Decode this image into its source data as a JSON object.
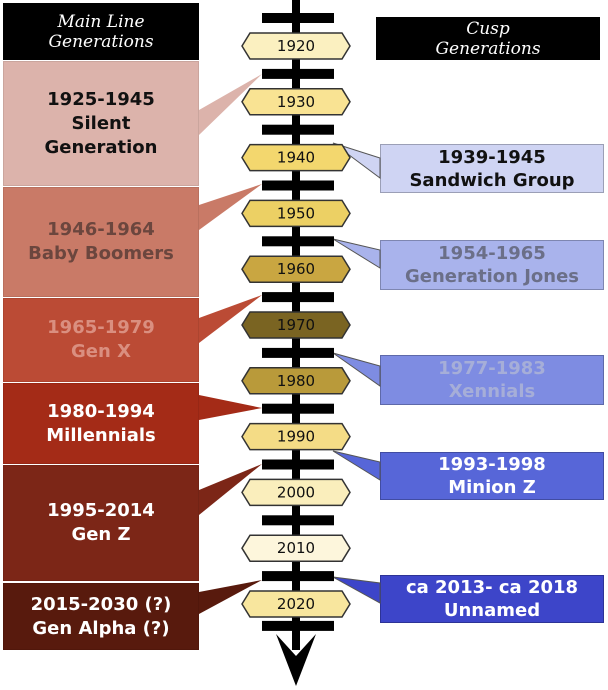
{
  "headers": {
    "main": {
      "line1": "Main Line",
      "line2": "Generations"
    },
    "cusp": {
      "line1": "Cusp",
      "line2": "Generations"
    }
  },
  "years": [
    "1920",
    "1930",
    "1940",
    "1950",
    "1960",
    "1970",
    "1980",
    "1990",
    "2000",
    "2010",
    "2020"
  ],
  "year_colors": [
    "#fbf0c0",
    "#f9e393",
    "#f3d76e",
    "#ecd064",
    "#c9a641",
    "#7a6422",
    "#b99a3a",
    "#f4dc86",
    "#faeebc",
    "#fdf6dc",
    "#f8e69e"
  ],
  "main_line": [
    {
      "years": "1925-1945",
      "name": "Silent",
      "name2": "Generation",
      "bg": "#dcb3ab",
      "fg": "#111111"
    },
    {
      "years": "1946-1964",
      "name": "Baby Boomers",
      "bg": "#c97a67",
      "fg": "#6b463e"
    },
    {
      "years": "1965-1979",
      "name": "Gen X",
      "bg": "#bb4b35",
      "fg": "#da8f80"
    },
    {
      "years": "1980-1994",
      "name": "Millennials",
      "bg": "#a42b17",
      "fg": "#ffffff"
    },
    {
      "years": "1995-2014",
      "name": "Gen Z",
      "bg": "#7c2617",
      "fg": "#ffffff"
    },
    {
      "years": "2015-2030 (?)",
      "name": "Gen Alpha (?)",
      "bg": "#581a0d",
      "fg": "#ffffff"
    }
  ],
  "cusp": [
    {
      "years": "1939-1945",
      "name": "Sandwich Group",
      "bg": "#cfd4f3",
      "fg": "#111111"
    },
    {
      "years": "1954-1965",
      "name": "Generation Jones",
      "bg": "#a9b3ec",
      "fg": "#6b6f88"
    },
    {
      "years": "1977-1983",
      "name": "Xennials",
      "bg": "#7e8ce2",
      "fg": "#a6aed8"
    },
    {
      "years": "1993-1998",
      "name": "Minion Z",
      "bg": "#5766d8",
      "fg": "#ffffff"
    },
    {
      "years": "ca 2013- ca 2018",
      "name": "Unnamed",
      "bg": "#3d45c9",
      "fg": "#ffffff"
    }
  ]
}
